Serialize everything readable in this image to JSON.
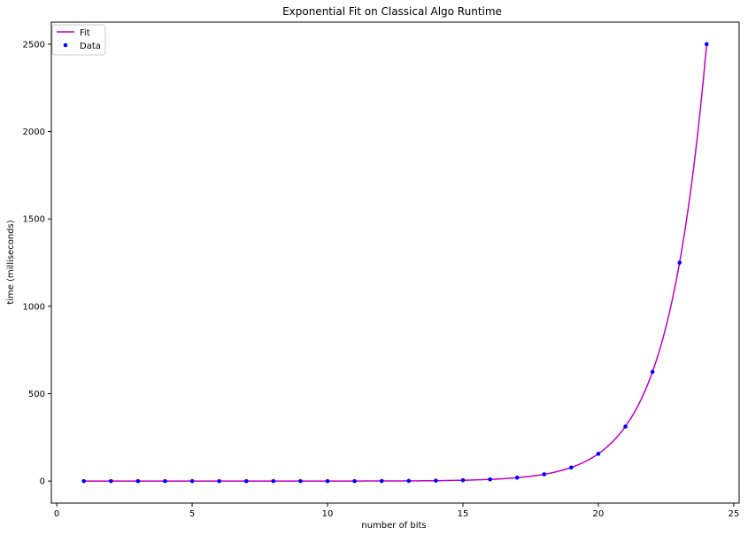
{
  "chart_data": {
    "type": "line",
    "title": "Exponential Fit on Classical Algo Runtime",
    "xlabel": "number of bits",
    "ylabel": "time (milliseconds)",
    "xlim": [
      -0.2,
      25.2
    ],
    "ylim": [
      -126,
      2626
    ],
    "xticks": [
      0,
      5,
      10,
      15,
      20,
      25
    ],
    "yticks": [
      0,
      500,
      1000,
      1500,
      2000,
      2500
    ],
    "grid": false,
    "legend": "top-left",
    "series": [
      {
        "name": "Fit",
        "kind": "line",
        "color": "#bf00bf",
        "x_range": [
          1,
          24
        ],
        "model": "exponential",
        "a": 0.000149,
        "b": 0.693147
      },
      {
        "name": "Data",
        "kind": "scatter",
        "color": "#0000ff",
        "x": [
          1,
          2,
          3,
          4,
          5,
          6,
          7,
          8,
          9,
          10,
          11,
          12,
          13,
          14,
          15,
          16,
          17,
          18,
          19,
          20,
          21,
          22,
          23,
          24
        ],
        "y": [
          0,
          0,
          0,
          0,
          0,
          0,
          0,
          0,
          0,
          0,
          0,
          0.6,
          1.2,
          2.4,
          4.9,
          9.8,
          19.5,
          39,
          78,
          156,
          312,
          625,
          1250,
          2500
        ]
      }
    ]
  }
}
